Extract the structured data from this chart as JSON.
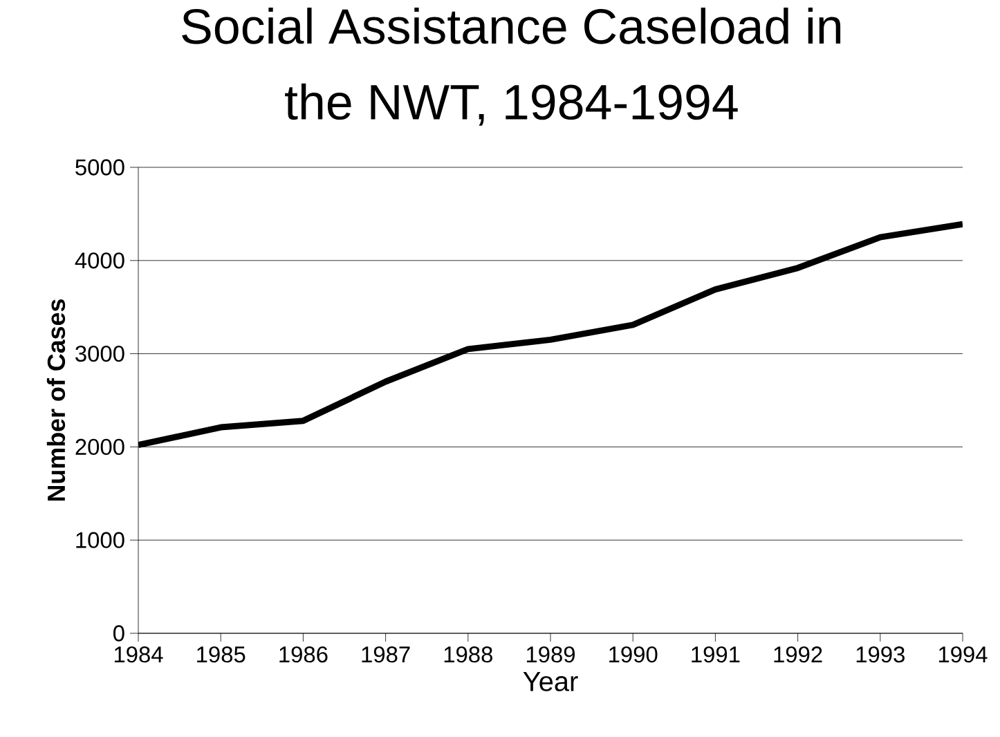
{
  "chart_data": {
    "type": "line",
    "title": "Social Assistance Caseload in the NWT, 1984-1994",
    "xlabel": "Year",
    "ylabel": "Number of Cases",
    "x": [
      1984,
      1985,
      1986,
      1987,
      1988,
      1989,
      1990,
      1991,
      1992,
      1993,
      1994
    ],
    "series": [
      {
        "color": "#000000",
        "values": [
          2020,
          2210,
          2280,
          2700,
          3050,
          3150,
          3310,
          3690,
          3920,
          4250,
          4390
        ]
      }
    ],
    "xlim": [
      1984,
      1994
    ],
    "xticks": [
      1984,
      1985,
      1986,
      1987,
      1988,
      1989,
      1990,
      1991,
      1992,
      1993,
      1994
    ],
    "ylim": [
      0,
      5000
    ],
    "yticks": [
      0,
      1000,
      2000,
      3000,
      4000,
      5000
    ],
    "grid": "y",
    "marker": "none",
    "line_style": "solid"
  }
}
